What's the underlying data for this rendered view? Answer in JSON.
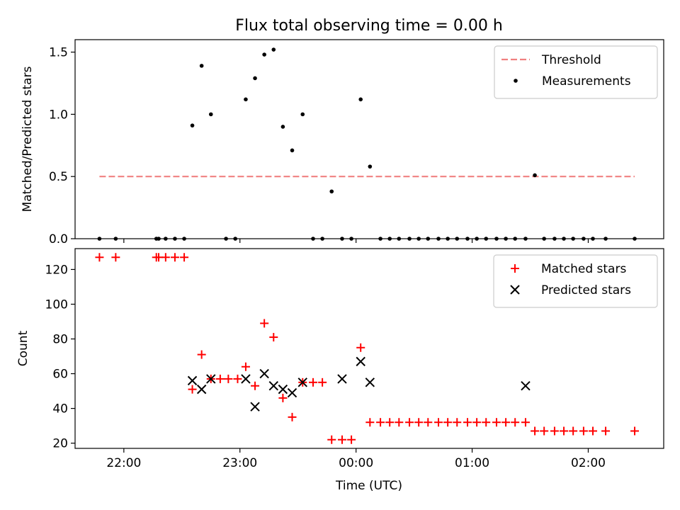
{
  "figure": {
    "title": "Flux total observing time = 0.00 h",
    "xlabel": "Time (UTC)"
  },
  "chart_data": [
    {
      "type": "scatter",
      "ylabel": "Matched/Predicted stars",
      "ylim": [
        0,
        1.6
      ],
      "yticks": [
        0.0,
        0.5,
        1.0,
        1.5
      ],
      "ytick_labels": [
        "0.0",
        "0.5",
        "1.0",
        "1.5"
      ],
      "xlim": [
        -0.42,
        4.65
      ],
      "legend_placement": "top-right",
      "threshold": {
        "name": "Threshold",
        "value": 0.5,
        "x_range": [
          -0.21,
          4.4
        ],
        "color": "#f08080"
      },
      "series": [
        {
          "name": "Measurements",
          "color": "#000000",
          "x": [
            -0.21,
            -0.07,
            0.28,
            0.3,
            0.36,
            0.44,
            0.52,
            0.59,
            0.67,
            0.75,
            0.88,
            0.96,
            1.05,
            1.13,
            1.21,
            1.29,
            1.37,
            1.45,
            1.54,
            1.63,
            1.71,
            1.79,
            1.88,
            1.96,
            2.04,
            2.12,
            2.21,
            2.29,
            2.37,
            2.46,
            2.54,
            2.62,
            2.71,
            2.79,
            2.87,
            2.96,
            3.04,
            3.12,
            3.21,
            3.29,
            3.37,
            3.46,
            3.54,
            3.62,
            3.71,
            3.79,
            3.87,
            3.96,
            4.04,
            4.15,
            4.4
          ],
          "y": [
            0,
            0,
            0,
            0,
            0,
            0,
            0,
            0.91,
            1.39,
            1.0,
            0,
            0,
            1.12,
            1.29,
            1.48,
            1.52,
            0.9,
            0.71,
            1.0,
            0,
            0,
            0.38,
            0,
            0,
            1.12,
            0.58,
            0,
            0,
            0,
            0,
            0,
            0,
            0,
            0,
            0,
            0,
            0,
            0,
            0,
            0,
            0,
            0,
            0.51,
            0,
            0,
            0,
            0,
            0,
            0,
            0,
            0
          ]
        }
      ]
    },
    {
      "type": "scatter",
      "ylabel": "Count",
      "ylim": [
        17,
        132
      ],
      "yticks": [
        20,
        40,
        60,
        80,
        100,
        120
      ],
      "ytick_labels": [
        "20",
        "40",
        "60",
        "80",
        "100",
        "120"
      ],
      "xlim": [
        -0.42,
        4.65
      ],
      "xticks": [
        0,
        1,
        2,
        3,
        4
      ],
      "xtick_labels": [
        "22:00",
        "23:00",
        "00:00",
        "01:00",
        "02:00"
      ],
      "legend_placement": "top-right",
      "series": [
        {
          "name": "Matched stars",
          "color": "#ff0000",
          "marker": "plus",
          "x": [
            -0.21,
            -0.07,
            0.28,
            0.3,
            0.36,
            0.44,
            0.52,
            0.59,
            0.67,
            0.75,
            0.83,
            0.9,
            0.98,
            1.05,
            1.13,
            1.21,
            1.29,
            1.37,
            1.45,
            1.54,
            1.63,
            1.71,
            1.79,
            1.88,
            1.96,
            2.04,
            2.12,
            2.21,
            2.29,
            2.37,
            2.46,
            2.54,
            2.62,
            2.71,
            2.79,
            2.87,
            2.96,
            3.04,
            3.12,
            3.21,
            3.29,
            3.37,
            3.46,
            3.54,
            3.62,
            3.71,
            3.79,
            3.87,
            3.96,
            4.04,
            4.15,
            4.4
          ],
          "y": [
            127,
            127,
            127,
            127,
            127,
            127,
            127,
            51,
            71,
            57,
            57,
            57,
            57,
            64,
            53,
            89,
            81,
            46,
            35,
            55,
            55,
            55,
            22,
            22,
            22,
            75,
            32,
            32,
            32,
            32,
            32,
            32,
            32,
            32,
            32,
            32,
            32,
            32,
            32,
            32,
            32,
            32,
            32,
            27,
            27,
            27,
            27,
            27,
            27,
            27,
            27,
            27
          ]
        },
        {
          "name": "Predicted stars",
          "color": "#000000",
          "marker": "x",
          "x": [
            0.59,
            0.67,
            0.75,
            1.05,
            1.13,
            1.21,
            1.29,
            1.37,
            1.45,
            1.54,
            1.88,
            2.04,
            2.12,
            3.46
          ],
          "y": [
            56,
            51,
            57,
            57,
            41,
            60,
            53,
            51,
            49,
            55,
            57,
            67,
            55,
            53
          ]
        }
      ]
    }
  ]
}
